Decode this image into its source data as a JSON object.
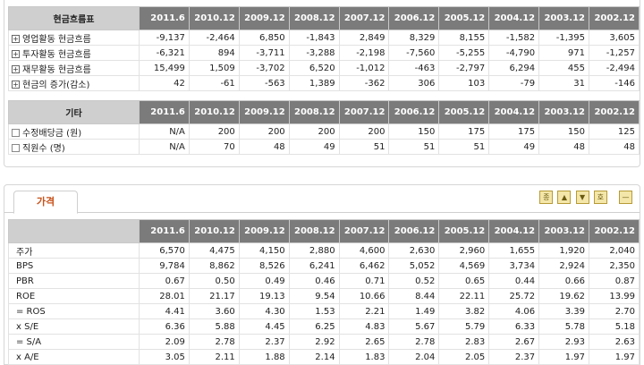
{
  "cashflow": {
    "header": [
      "현금흐름표",
      "2011.6",
      "2010.12",
      "2009.12",
      "2008.12",
      "2007.12",
      "2006.12",
      "2005.12",
      "2004.12",
      "2003.12",
      "2002.12"
    ],
    "rows": [
      {
        "label": "영업활동 현금흐름",
        "values": [
          "-9,137",
          "-2,464",
          "6,850",
          "-1,843",
          "2,849",
          "8,329",
          "8,155",
          "-1,582",
          "-1,395",
          "3,605"
        ]
      },
      {
        "label": "투자활동 현금흐름",
        "values": [
          "-6,321",
          "894",
          "-3,711",
          "-3,288",
          "-2,198",
          "-7,560",
          "-5,255",
          "-4,790",
          "971",
          "-1,257"
        ]
      },
      {
        "label": "재무활동 현금흐름",
        "values": [
          "15,499",
          "1,509",
          "-3,702",
          "6,520",
          "-1,012",
          "-463",
          "-2,797",
          "6,294",
          "455",
          "-2,494"
        ]
      },
      {
        "label": "현금의 증가(감소)",
        "values": [
          "42",
          "-61",
          "-563",
          "1,389",
          "-362",
          "306",
          "103",
          "-79",
          "31",
          "-146"
        ]
      }
    ]
  },
  "other": {
    "header": [
      "기타",
      "2011.6",
      "2010.12",
      "2009.12",
      "2008.12",
      "2007.12",
      "2006.12",
      "2005.12",
      "2004.12",
      "2003.12",
      "2002.12"
    ],
    "rows": [
      {
        "label": "수정배당금 (원)",
        "values": [
          "N/A",
          "200",
          "200",
          "200",
          "200",
          "150",
          "175",
          "175",
          "150",
          "125"
        ]
      },
      {
        "label": "직원수 (명)",
        "values": [
          "N/A",
          "70",
          "48",
          "49",
          "51",
          "51",
          "51",
          "49",
          "48",
          "48"
        ]
      }
    ]
  },
  "price_section": {
    "tab_label": "가격",
    "controls": [
      "종",
      "▲",
      "▼",
      "호",
      "—"
    ],
    "header": [
      "",
      "2011.6",
      "2010.12",
      "2009.12",
      "2008.12",
      "2007.12",
      "2006.12",
      "2005.12",
      "2004.12",
      "2003.12",
      "2002.12"
    ],
    "rows": [
      {
        "label": "주가",
        "values": [
          "6,570",
          "4,475",
          "4,150",
          "2,880",
          "4,600",
          "2,630",
          "2,960",
          "1,655",
          "1,920",
          "2,040"
        ]
      },
      {
        "label": "BPS",
        "values": [
          "9,784",
          "8,862",
          "8,526",
          "6,241",
          "6,462",
          "5,052",
          "4,569",
          "3,734",
          "2,924",
          "2,350"
        ]
      },
      {
        "label": "PBR",
        "values": [
          "0.67",
          "0.50",
          "0.49",
          "0.46",
          "0.71",
          "0.52",
          "0.65",
          "0.44",
          "0.66",
          "0.87"
        ]
      },
      {
        "label": "ROE",
        "values": [
          "28.01",
          "21.17",
          "19.13",
          "9.54",
          "10.66",
          "8.44",
          "22.11",
          "25.72",
          "19.62",
          "13.99"
        ]
      },
      {
        "label": "= ROS",
        "values": [
          "4.41",
          "3.60",
          "4.30",
          "1.53",
          "2.21",
          "1.49",
          "3.82",
          "4.06",
          "3.39",
          "2.70"
        ]
      },
      {
        "label": "x S/E",
        "values": [
          "6.36",
          "5.88",
          "4.45",
          "6.25",
          "4.83",
          "5.67",
          "5.79",
          "6.33",
          "5.78",
          "5.18"
        ]
      },
      {
        "label": "= S/A",
        "values": [
          "2.09",
          "2.78",
          "2.37",
          "2.92",
          "2.65",
          "2.78",
          "2.83",
          "2.67",
          "2.93",
          "2.63"
        ]
      },
      {
        "label": "x A/E",
        "values": [
          "3.05",
          "2.11",
          "1.88",
          "2.14",
          "1.83",
          "2.04",
          "2.05",
          "2.37",
          "1.97",
          "1.97"
        ]
      }
    ]
  }
}
